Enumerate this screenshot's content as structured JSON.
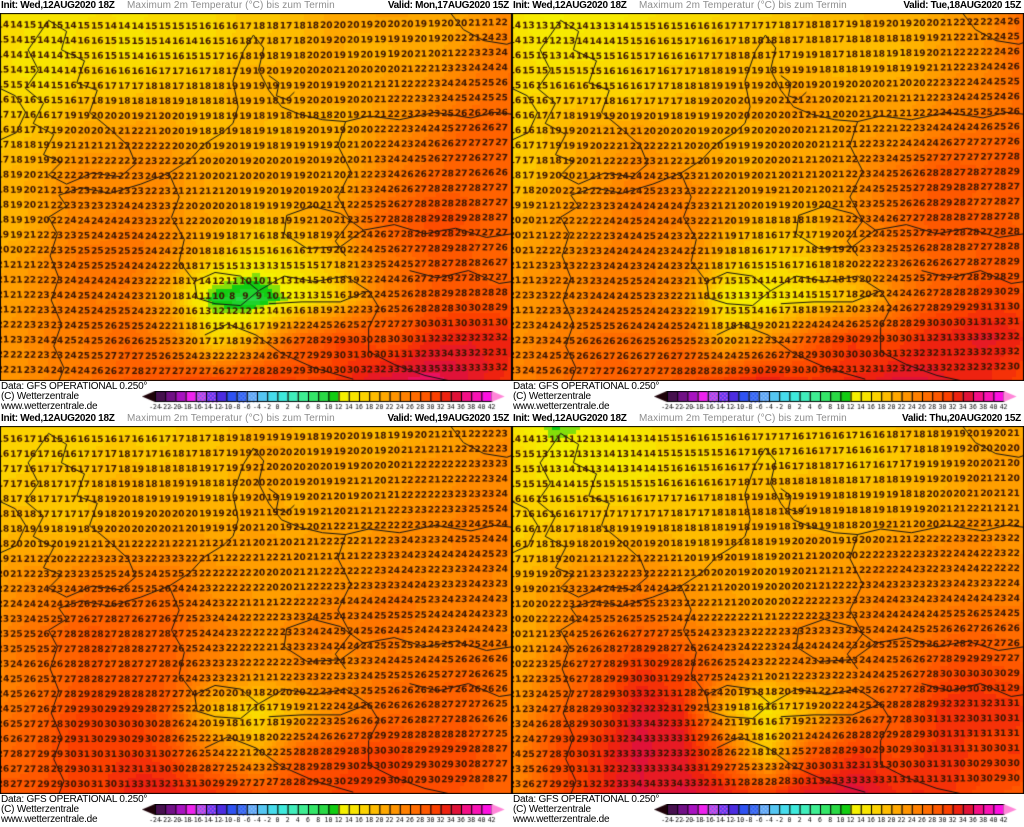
{
  "footer": {
    "data_source": "Data: GFS OPERATIONAL 0.250°",
    "copyright": "(C) Wetterzentrale",
    "website": "www.wetterzentrale.de"
  },
  "colors": {
    "number_text": "#3a1503",
    "border_line": "#141414",
    "header_init": "#000000",
    "header_title": "#8e8e8e",
    "tick_text": "#000000"
  },
  "scale": {
    "ticks": [
      -24,
      -22,
      -20,
      -18,
      -16,
      -14,
      -12,
      -10,
      -8,
      -6,
      -4,
      -2,
      0,
      2,
      4,
      6,
      8,
      10,
      12,
      14,
      16,
      18,
      20,
      22,
      24,
      26,
      28,
      30,
      32,
      34,
      36,
      38,
      40,
      42
    ],
    "stops": [
      [
        -24,
        "#46104e"
      ],
      [
        -22,
        "#711086"
      ],
      [
        -20,
        "#a812c0"
      ],
      [
        -18,
        "#ee22ee"
      ],
      [
        -16,
        "#d84ae8"
      ],
      [
        -14,
        "#5c3cee"
      ],
      [
        -12,
        "#4c2ce0"
      ],
      [
        -10,
        "#2f52f2"
      ],
      [
        -8,
        "#4a7cf5"
      ],
      [
        -6,
        "#5ea4f6"
      ],
      [
        -4,
        "#55c6f2"
      ],
      [
        -2,
        "#46dcec"
      ],
      [
        0,
        "#3eeadc"
      ],
      [
        2,
        "#40eebb"
      ],
      [
        4,
        "#3eee92"
      ],
      [
        6,
        "#34e668"
      ],
      [
        8,
        "#2ad945"
      ],
      [
        10,
        "#12cd12"
      ],
      [
        12,
        "#f5f000"
      ],
      [
        14,
        "#f8e400"
      ],
      [
        16,
        "#fcd200"
      ],
      [
        18,
        "#febc00"
      ],
      [
        20,
        "#ffa800"
      ],
      [
        22,
        "#ff9400"
      ],
      [
        24,
        "#ff8000"
      ],
      [
        26,
        "#ff6c00"
      ],
      [
        28,
        "#fe5800"
      ],
      [
        30,
        "#fb4000"
      ],
      [
        32,
        "#ee2210"
      ],
      [
        34,
        "#e01238"
      ],
      [
        36,
        "#f40f86"
      ],
      [
        38,
        "#fa12b4"
      ],
      [
        40,
        "#fd10e0"
      ],
      [
        42,
        "#ff86d8"
      ]
    ],
    "dither": {
      "-16": "#6a5af0",
      "-14": "#c44af0",
      "-8": "#2f52f2",
      "-6": "#8cc4fa"
    },
    "left_arrow": "#1d0208",
    "right_arrow": "#ff86d8"
  },
  "map": {
    "number_grid": {
      "cols": 38,
      "rows": 24
    },
    "borders": [
      [
        [
          0.095,
          0.02
        ],
        [
          0.13,
          0.05
        ],
        [
          0.12,
          0.1
        ],
        [
          0.165,
          0.13
        ],
        [
          0.15,
          0.19
        ],
        [
          0.19,
          0.21
        ],
        [
          0.175,
          0.27
        ],
        [
          0.21,
          0.31
        ],
        [
          0.25,
          0.36
        ],
        [
          0.265,
          0.41
        ],
        [
          0.235,
          0.445
        ],
        [
          0.18,
          0.435
        ],
        [
          0.13,
          0.465
        ],
        [
          0.095,
          0.44
        ],
        [
          0.12,
          0.405
        ],
        [
          0.085,
          0.385
        ],
        [
          0.105,
          0.33
        ],
        [
          0.065,
          0.3
        ],
        [
          0.085,
          0.245
        ],
        [
          0.05,
          0.205
        ],
        [
          0.075,
          0.155
        ],
        [
          0.055,
          0.1
        ],
        [
          0.095,
          0.02
        ]
      ],
      [
        [
          0.0,
          0.205
        ],
        [
          0.03,
          0.225
        ],
        [
          0.05,
          0.27
        ],
        [
          0.032,
          0.325
        ],
        [
          0.0,
          0.345
        ]
      ],
      [
        [
          0.095,
          0.555
        ],
        [
          0.13,
          0.525
        ],
        [
          0.115,
          0.495
        ],
        [
          0.16,
          0.475
        ],
        [
          0.215,
          0.49
        ],
        [
          0.275,
          0.465
        ],
        [
          0.33,
          0.435
        ],
        [
          0.37,
          0.4
        ],
        [
          0.4,
          0.355
        ],
        [
          0.435,
          0.325
        ],
        [
          0.455,
          0.3
        ],
        [
          0.465,
          0.255
        ],
        [
          0.455,
          0.185
        ],
        [
          0.475,
          0.105
        ],
        [
          0.495,
          0.06
        ],
        [
          0.515,
          0.095
        ],
        [
          0.505,
          0.155
        ],
        [
          0.525,
          0.21
        ],
        [
          0.55,
          0.255
        ],
        [
          0.585,
          0.275
        ],
        [
          0.63,
          0.29
        ],
        [
          0.675,
          0.295
        ],
        [
          0.72,
          0.28
        ],
        [
          0.78,
          0.29
        ],
        [
          0.85,
          0.27
        ],
        [
          0.92,
          0.285
        ],
        [
          0.965,
          0.27
        ],
        [
          1.0,
          0.275
        ]
      ],
      [
        [
          0.525,
          0.17
        ],
        [
          0.545,
          0.19
        ],
        [
          0.54,
          0.225
        ],
        [
          0.56,
          0.235
        ],
        [
          0.575,
          0.215
        ]
      ],
      [
        [
          0.88,
          0.0
        ],
        [
          0.905,
          0.045
        ],
        [
          0.945,
          0.075
        ],
        [
          0.99,
          0.085
        ],
        [
          1.0,
          0.08
        ]
      ],
      [
        [
          0.095,
          0.555
        ],
        [
          0.112,
          0.6
        ],
        [
          0.098,
          0.66
        ],
        [
          0.115,
          0.72
        ],
        [
          0.1,
          0.78
        ],
        [
          0.12,
          0.845
        ],
        [
          0.105,
          0.905
        ],
        [
          0.125,
          0.965
        ],
        [
          0.115,
          1.0
        ]
      ],
      [
        [
          0.33,
          0.435
        ],
        [
          0.35,
          0.5
        ],
        [
          0.335,
          0.555
        ],
        [
          0.36,
          0.615
        ],
        [
          0.35,
          0.675
        ],
        [
          0.38,
          0.73
        ]
      ],
      [
        [
          0.38,
          0.73
        ],
        [
          0.42,
          0.705
        ],
        [
          0.47,
          0.715
        ],
        [
          0.505,
          0.755
        ],
        [
          0.47,
          0.795
        ],
        [
          0.42,
          0.79
        ],
        [
          0.385,
          0.775
        ],
        [
          0.38,
          0.73
        ]
      ],
      [
        [
          0.505,
          0.755
        ],
        [
          0.555,
          0.715
        ],
        [
          0.615,
          0.73
        ],
        [
          0.675,
          0.715
        ],
        [
          0.72,
          0.755
        ],
        [
          0.665,
          0.785
        ],
        [
          0.59,
          0.785
        ],
        [
          0.525,
          0.79
        ]
      ],
      [
        [
          0.675,
          0.295
        ],
        [
          0.66,
          0.36
        ],
        [
          0.685,
          0.43
        ],
        [
          0.66,
          0.5
        ],
        [
          0.685,
          0.565
        ],
        [
          0.655,
          0.62
        ],
        [
          0.675,
          0.66
        ]
      ],
      [
        [
          0.56,
          0.55
        ],
        [
          0.61,
          0.525
        ],
        [
          0.665,
          0.545
        ],
        [
          0.71,
          0.59
        ],
        [
          0.665,
          0.635
        ],
        [
          0.6,
          0.64
        ],
        [
          0.555,
          0.6
        ],
        [
          0.56,
          0.55
        ]
      ],
      [
        [
          0.4,
          0.875
        ],
        [
          0.445,
          0.845
        ],
        [
          0.5,
          0.875
        ],
        [
          0.55,
          0.925
        ],
        [
          0.615,
          0.965
        ],
        [
          0.69,
          0.995
        ]
      ],
      [
        [
          0.72,
          0.92
        ],
        [
          0.77,
          0.955
        ],
        [
          0.83,
          0.985
        ],
        [
          0.88,
          1.0
        ]
      ],
      [
        [
          0.72,
          0.755
        ],
        [
          0.74,
          0.8
        ],
        [
          0.72,
          0.855
        ],
        [
          0.72,
          0.92
        ]
      ],
      [
        [
          0.8,
          0.7
        ],
        [
          0.855,
          0.72
        ],
        [
          0.915,
          0.7
        ],
        [
          0.975,
          0.735
        ],
        [
          1.0,
          0.73
        ]
      ],
      [
        [
          0.71,
          0.59
        ],
        [
          0.77,
          0.575
        ],
        [
          0.83,
          0.6
        ],
        [
          0.89,
          0.585
        ],
        [
          0.95,
          0.61
        ],
        [
          1.0,
          0.6
        ]
      ]
    ]
  },
  "panels": [
    {
      "init": "Init: Wed,12AUG2020 18Z",
      "title": "Maximum 2m Temperatur (°C) bis zum Termin",
      "valid": "Valid: Mon,17AUG2020 15Z",
      "field": [
        [
          14,
          13,
          13,
          14,
          15,
          16,
          17,
          18,
          19,
          20,
          20,
          21,
          24
        ],
        [
          15,
          14,
          15,
          15,
          16,
          17,
          18,
          18,
          19,
          19,
          20,
          22,
          25
        ],
        [
          16,
          16,
          17,
          17,
          18,
          18,
          19,
          19,
          20,
          21,
          22,
          24,
          26
        ],
        [
          17,
          19,
          21,
          22,
          20,
          18,
          19,
          19,
          20,
          22,
          24,
          26,
          27
        ],
        [
          18,
          20,
          23,
          23,
          22,
          19,
          19,
          20,
          21,
          24,
          27,
          27,
          28
        ],
        [
          19,
          21,
          23,
          24,
          23,
          20,
          18,
          19,
          22,
          26,
          28,
          28,
          27
        ],
        [
          20,
          22,
          24,
          24,
          22,
          17,
          15,
          16,
          19,
          24,
          27,
          28,
          27
        ],
        [
          21,
          23,
          25,
          24,
          20,
          10,
          9,
          12,
          16,
          24,
          27,
          28,
          27
        ],
        [
          22,
          24,
          25,
          26,
          24,
          16,
          20,
          27,
          30,
          29,
          31,
          32,
          31
        ],
        [
          23,
          24,
          26,
          27,
          28,
          29,
          31,
          30,
          31,
          34,
          34,
          33,
          30
        ]
      ]
    },
    {
      "init": "Init: Wed,12AUG2020 18Z",
      "title": "Maximum 2m Temperatur (°C) bis zum Termin",
      "valid": "Valid: Tue,18AUG2020 15Z",
      "field": [
        [
          14,
          13,
          14,
          14,
          15,
          16,
          17,
          17,
          18,
          19,
          20,
          21,
          25
        ],
        [
          15,
          14,
          15,
          16,
          16,
          17,
          18,
          18,
          19,
          19,
          21,
          22,
          26
        ],
        [
          16,
          16,
          17,
          17,
          18,
          18,
          19,
          20,
          20,
          21,
          22,
          24,
          26
        ],
        [
          17,
          18,
          20,
          21,
          20,
          19,
          19,
          20,
          21,
          22,
          24,
          26,
          27
        ],
        [
          18,
          20,
          22,
          23,
          22,
          20,
          20,
          21,
          22,
          25,
          27,
          27,
          28
        ],
        [
          19,
          21,
          23,
          24,
          23,
          21,
          19,
          20,
          23,
          26,
          28,
          28,
          27
        ],
        [
          20,
          22,
          24,
          24,
          23,
          18,
          16,
          17,
          20,
          25,
          27,
          28,
          27
        ],
        [
          21,
          23,
          25,
          25,
          22,
          13,
          12,
          15,
          18,
          25,
          28,
          29,
          28
        ],
        [
          22,
          24,
          26,
          26,
          25,
          18,
          21,
          28,
          31,
          30,
          32,
          33,
          32
        ],
        [
          23,
          25,
          26,
          27,
          28,
          30,
          32,
          31,
          32,
          34,
          33,
          32,
          31
        ]
      ]
    },
    {
      "init": "Init: Wed,12AUG2020 18Z",
      "title": "Maximum 2m Temperatur (°C) bis zum Termin",
      "valid": "Valid: Wed,19AUG2020 15Z",
      "field": [
        [
          16,
          16,
          16,
          17,
          17,
          17,
          18,
          18,
          19,
          19,
          20,
          21,
          22
        ],
        [
          17,
          17,
          17,
          18,
          18,
          18,
          19,
          19,
          19,
          20,
          21,
          22,
          23
        ],
        [
          18,
          18,
          18,
          19,
          19,
          19,
          20,
          20,
          21,
          22,
          22,
          23,
          23
        ],
        [
          19,
          20,
          21,
          22,
          21,
          20,
          20,
          21,
          22,
          23,
          23,
          24,
          24
        ],
        [
          21,
          23,
          25,
          26,
          25,
          22,
          21,
          22,
          23,
          24,
          24,
          24,
          24
        ],
        [
          22,
          25,
          27,
          28,
          27,
          24,
          22,
          23,
          24,
          25,
          25,
          25,
          24
        ],
        [
          23,
          26,
          28,
          29,
          28,
          24,
          21,
          22,
          23,
          25,
          26,
          26,
          25
        ],
        [
          25,
          27,
          29,
          30,
          27,
          17,
          14,
          18,
          24,
          26,
          27,
          27,
          26
        ],
        [
          27,
          29,
          30,
          30,
          29,
          24,
          20,
          27,
          29,
          29,
          28,
          28,
          27
        ],
        [
          28,
          29,
          30,
          31,
          31,
          30,
          29,
          30,
          31,
          30,
          29,
          28,
          27
        ]
      ]
    },
    {
      "init": "Init: Wed,12AUG2020 18Z",
      "title": "Maximum 2m Temperatur (°C) bis zum Termin",
      "valid": "Valid: Thu,20AUG2020 15Z",
      "field": [
        [
          14,
          11,
          13,
          14,
          15,
          15,
          16,
          16,
          17,
          18,
          19,
          19,
          20
        ],
        [
          15,
          14,
          14,
          15,
          15,
          16,
          16,
          17,
          17,
          18,
          19,
          20,
          21
        ],
        [
          16,
          16,
          16,
          17,
          17,
          17,
          18,
          18,
          19,
          19,
          20,
          21,
          22
        ],
        [
          17,
          18,
          19,
          20,
          19,
          19,
          19,
          20,
          20,
          21,
          22,
          23,
          23
        ],
        [
          19,
          21,
          23,
          24,
          23,
          21,
          20,
          21,
          22,
          23,
          24,
          24,
          24
        ],
        [
          20,
          23,
          26,
          27,
          26,
          23,
          22,
          22,
          23,
          24,
          25,
          26,
          25
        ],
        [
          21,
          25,
          28,
          30,
          29,
          25,
          22,
          23,
          24,
          26,
          28,
          29,
          28
        ],
        [
          22,
          27,
          30,
          33,
          31,
          18,
          14,
          19,
          25,
          28,
          30,
          31,
          30
        ],
        [
          23,
          28,
          31,
          34,
          33,
          26,
          16,
          28,
          31,
          30,
          31,
          31,
          31
        ],
        [
          24,
          29,
          31,
          33,
          34,
          32,
          30,
          33,
          34,
          31,
          30,
          29,
          28
        ]
      ]
    }
  ]
}
